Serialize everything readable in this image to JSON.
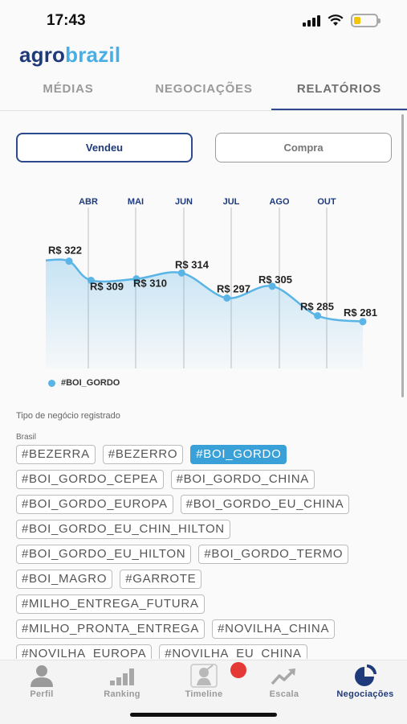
{
  "status_bar": {
    "time": "17:43",
    "battery_level": 0.3
  },
  "logo": {
    "part1": "agro",
    "part2": "brazil"
  },
  "tabs": [
    {
      "label": "MÉDIAS",
      "active": false
    },
    {
      "label": "NEGOCIAÇÕES",
      "active": false
    },
    {
      "label": "RELATÓRIOS",
      "active": true
    }
  ],
  "toggle": {
    "sold_label": "Vendeu",
    "buy_label": "Compra",
    "selected": "Vendeu"
  },
  "chart_data": {
    "type": "area",
    "title": "",
    "months": [
      "ABR",
      "MAI",
      "JUN",
      "JUL",
      "AGO",
      "OUT"
    ],
    "series": [
      {
        "name": "#BOI_GORDO",
        "color": "#5ab4e6",
        "points": [
          {
            "label": "R$ 322",
            "value": 322
          },
          {
            "label": "R$ 309",
            "value": 309
          },
          {
            "label": "R$ 310",
            "value": 310
          },
          {
            "label": "R$ 314",
            "value": 314
          },
          {
            "label": "R$ 297",
            "value": 297
          },
          {
            "label": "R$ 305",
            "value": 305
          },
          {
            "label": "R$ 285",
            "value": 285
          },
          {
            "label": "R$ 281",
            "value": 281
          }
        ]
      }
    ],
    "grid": "vertical",
    "legend_position": "bottom-left"
  },
  "filters": {
    "section_title": "Tipo de negócio registrado",
    "group_label": "Brasil",
    "tags": [
      {
        "label": "#BEZERRA",
        "selected": false
      },
      {
        "label": "#BEZERRO",
        "selected": false
      },
      {
        "label": "#BOI_GORDO",
        "selected": true
      },
      {
        "label": "#BOI_GORDO_CEPEA",
        "selected": false
      },
      {
        "label": "#BOI_GORDO_CHINA",
        "selected": false
      },
      {
        "label": "#BOI_GORDO_EUROPA",
        "selected": false
      },
      {
        "label": "#BOI_GORDO_EU_CHINA",
        "selected": false
      },
      {
        "label": "#BOI_GORDO_EU_CHIN_HILTON",
        "selected": false
      },
      {
        "label": "#BOI_GORDO_EU_HILTON",
        "selected": false
      },
      {
        "label": "#BOI_GORDO_TERMO",
        "selected": false
      },
      {
        "label": "#BOI_MAGRO",
        "selected": false
      },
      {
        "label": "#GARROTE",
        "selected": false
      },
      {
        "label": "#MILHO_ENTREGA_FUTURA",
        "selected": false
      },
      {
        "label": "#MILHO_PRONTA_ENTREGA",
        "selected": false
      },
      {
        "label": "#NOVILHA_CHINA",
        "selected": false
      },
      {
        "label": "#NOVILHA_EUROPA",
        "selected": false
      },
      {
        "label": "#NOVILHA_EU_CHINA",
        "selected": false
      }
    ]
  },
  "bottom_nav": [
    {
      "label": "Perfil",
      "icon": "person-icon",
      "active": false
    },
    {
      "label": "Ranking",
      "icon": "bar-chart-icon",
      "active": false
    },
    {
      "label": "Timeline",
      "icon": "timeline-icon",
      "active": false
    },
    {
      "label": "Escala",
      "icon": "trending-up-icon",
      "active": false
    },
    {
      "label": "Negociações",
      "icon": "pie-chart-icon",
      "active": true
    }
  ],
  "colors": {
    "brand_dark": "#1f3a7a",
    "brand_light": "#47aee6",
    "accent": "#3aa0d8",
    "badge": "#e53935"
  }
}
